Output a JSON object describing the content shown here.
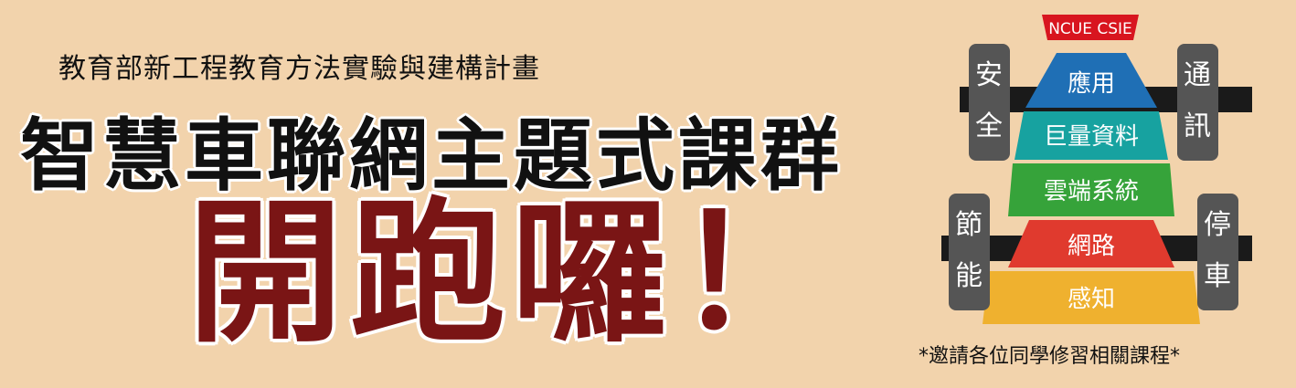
{
  "header": {
    "subtitle": "教育部新工程教育方法實驗與建構計畫",
    "title": "智慧車聯網主題式課群",
    "slogan": "開跑囉！"
  },
  "diagram": {
    "badge": "NCUE CSIE",
    "layers": [
      {
        "label": "應用",
        "color": "#1f6fb5"
      },
      {
        "label": "巨量資料",
        "color": "#17a2a0"
      },
      {
        "label": "雲端系統",
        "color": "#36a33a"
      },
      {
        "label": "網路",
        "color": "#e03a2e"
      },
      {
        "label": "感知",
        "color": "#efb12f"
      }
    ],
    "side_labels": {
      "top_left": "安全",
      "top_right": "通訊",
      "bottom_left": "節能",
      "bottom_right": "停車"
    }
  },
  "footer": {
    "note": "*邀請各位同學修習相關課程*"
  }
}
